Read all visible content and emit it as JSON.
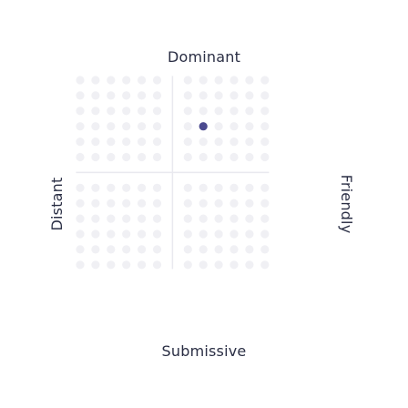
{
  "axes": {
    "top": "Dominant",
    "bottom": "Submissive",
    "left": "Distant",
    "right": "Friendly"
  },
  "grid": {
    "columns": 13,
    "rows": 13,
    "center_col": 6,
    "center_row": 6
  },
  "marker": {
    "col": 8,
    "row": 3
  },
  "colors": {
    "dot": "#f0f0f4",
    "crosshair": "#e9e9ef",
    "marker": "#4b4a8f",
    "text": "#2a2e44"
  }
}
